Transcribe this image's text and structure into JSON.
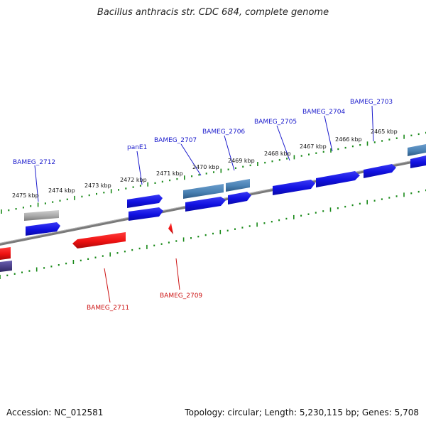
{
  "title": "Bacillus anthracis str. CDC 684, complete genome",
  "accession": "Accession: NC_012581",
  "summary": "Topology: circular; Length: 5,230,115 bp; Genes: 5,708",
  "colors": {
    "forward_cds": "#1010e6",
    "reverse_cds": "#ee1111",
    "steel": "#4a82b4",
    "gray_feature": "#a0a0a0",
    "purple_feature": "#4a3f88",
    "tick": "#1a8a1a",
    "backbone": "#808080",
    "forward_label": "#1a1acc",
    "reverse_label": "#cc1111"
  },
  "scale_labels": [
    "2475 kbp",
    "2474 kbp",
    "2473 kbp",
    "2472 kbp",
    "2471 kbp",
    "2470 kbp",
    "2469 kbp",
    "2468 kbp",
    "2467 kbp",
    "2466 kbp",
    "2465 kbp"
  ],
  "forward_gene_labels": [
    "BAMEG_2712",
    "panE1",
    "BAMEG_2707",
    "BAMEG_2706",
    "BAMEG_2705",
    "BAMEG_2704",
    "BAMEG_2703"
  ],
  "reverse_gene_labels": [
    "BAMEG_2711",
    "BAMEG_2709"
  ]
}
